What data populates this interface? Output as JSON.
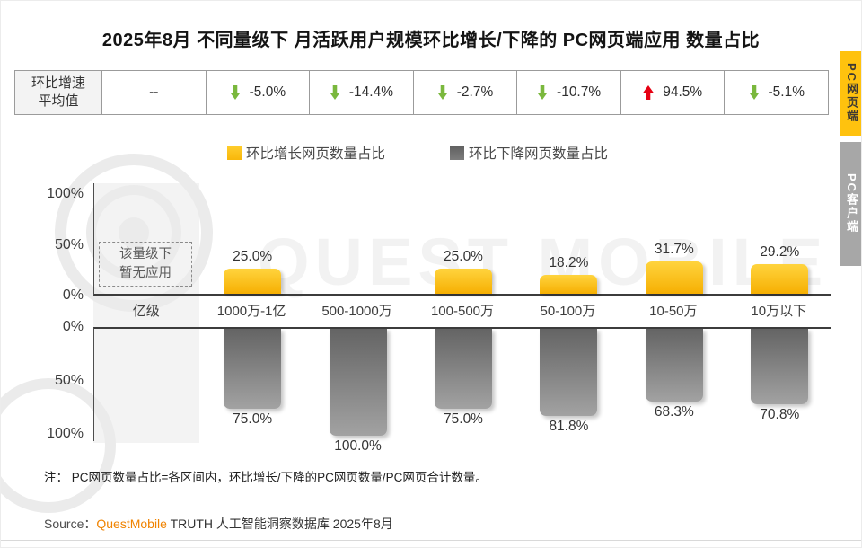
{
  "page": {
    "title": "2025年8月 不同量级下 月活跃用户规模环比增长/下降的 PC网页端应用 数量占比"
  },
  "summary_table": {
    "header": "环比增速平均值",
    "header_lines": [
      "环比增速",
      "平均值"
    ],
    "cells": [
      {
        "direction": "none",
        "value": "--"
      },
      {
        "direction": "down",
        "value": "-5.0%"
      },
      {
        "direction": "down",
        "value": "-14.4%"
      },
      {
        "direction": "down",
        "value": "-2.7%"
      },
      {
        "direction": "down",
        "value": "-10.7%"
      },
      {
        "direction": "up",
        "value": "94.5%"
      },
      {
        "direction": "down",
        "value": "-5.1%"
      }
    ]
  },
  "legend": [
    {
      "label": "环比增长网页数量占比",
      "color": "#FFC20E"
    },
    {
      "label": "环比下降网页数量占比",
      "color": "#6B6B6B"
    }
  ],
  "side_tabs": [
    {
      "label": "PC网页端",
      "active": true
    },
    {
      "label": "PC客户端",
      "active": false
    }
  ],
  "chart_data": {
    "type": "bar",
    "title": "2025年8月 不同量级下 月活跃用户规模环比增长/下降的 PC网页端应用 数量占比",
    "categories": [
      "亿级",
      "1000万-1亿",
      "500-1000万",
      "100-500万",
      "50-100万",
      "10-50万",
      "10万以下"
    ],
    "series": [
      {
        "name": "环比增长网页数量占比",
        "color": "#FFC20E",
        "values": [
          null,
          25.0,
          null,
          25.0,
          18.2,
          31.7,
          29.2
        ],
        "labels": [
          "",
          "25.0%",
          "",
          "25.0%",
          "18.2%",
          "31.7%",
          "29.2%"
        ]
      },
      {
        "name": "环比下降网页数量占比",
        "color": "#808080",
        "values": [
          null,
          75.0,
          100.0,
          75.0,
          81.8,
          68.3,
          70.8
        ],
        "labels": [
          "",
          "75.0%",
          "100.0%",
          "75.0%",
          "81.8%",
          "68.3%",
          "70.8%"
        ]
      }
    ],
    "avg_growth_rate_row": {
      "header": "环比增速平均值",
      "values": [
        "--",
        "-5.0%",
        "-14.4%",
        "-2.7%",
        "-10.7%",
        "94.5%",
        "-5.1%"
      ]
    },
    "empty_note": "该量级下暂无应用",
    "empty_note_lines": [
      "该量级下",
      "暂无应用"
    ],
    "yticks_top": [
      "100%",
      "50%",
      "0%"
    ],
    "yticks_bottom": [
      "0%",
      "50%",
      "100%"
    ],
    "ylim": [
      0,
      100
    ],
    "orientation": "mirrored-vertical",
    "grid": false,
    "legend_position": "top"
  },
  "colors": {
    "growth": "#FFC20E",
    "decline": "#808080",
    "arrow_up": "#E60012",
    "arrow_down": "#7AB83D",
    "brand_orange": "#F08300"
  },
  "note": {
    "text": "注： PC网页数量占比=各区间内，环比增长/下降的PC网页数量/PC网页合计数量。"
  },
  "source": {
    "prefix": "Source：",
    "brand": "QuestMobile",
    "suffix": " TRUTH 人工智能洞察数据库 2025年8月"
  },
  "watermark": "QUEST MOBILE"
}
